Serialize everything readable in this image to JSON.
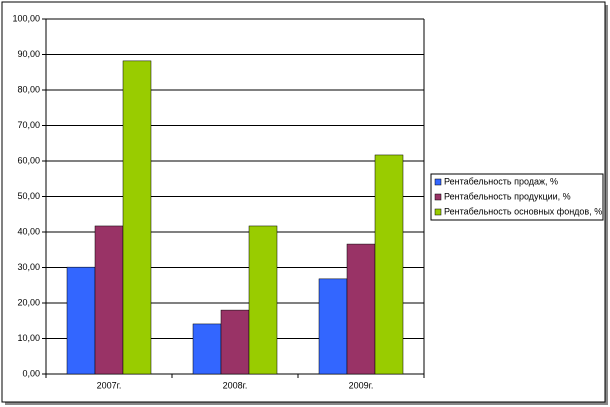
{
  "chart_data": {
    "type": "bar",
    "categories": [
      "2007г.",
      "2008г.",
      "2009г."
    ],
    "series": [
      {
        "name": "Рентабельность продаж, %",
        "color": "#3366ff",
        "values": [
          30.1,
          14.1,
          26.8
        ]
      },
      {
        "name": "Рентабельность продукции, %",
        "color": "#993366",
        "values": [
          41.7,
          18.0,
          36.6
        ]
      },
      {
        "name": "Рентабельность основных фондов, %",
        "color": "#99cc00",
        "values": [
          88.2,
          41.7,
          61.7
        ]
      }
    ],
    "ylim": [
      0,
      100
    ],
    "yticks": [
      {
        "value": 0,
        "label": "0,00"
      },
      {
        "value": 10,
        "label": "10,00"
      },
      {
        "value": 20,
        "label": "20,00"
      },
      {
        "value": 30,
        "label": "30,00"
      },
      {
        "value": 40,
        "label": "40,00"
      },
      {
        "value": 50,
        "label": "50,00"
      },
      {
        "value": 60,
        "label": "60,00"
      },
      {
        "value": 70,
        "label": "70,00"
      },
      {
        "value": 80,
        "label": "80,00"
      },
      {
        "value": 90,
        "label": "90,00"
      },
      {
        "value": 100,
        "label": "100,00"
      }
    ],
    "grid": true,
    "legend": "right"
  }
}
